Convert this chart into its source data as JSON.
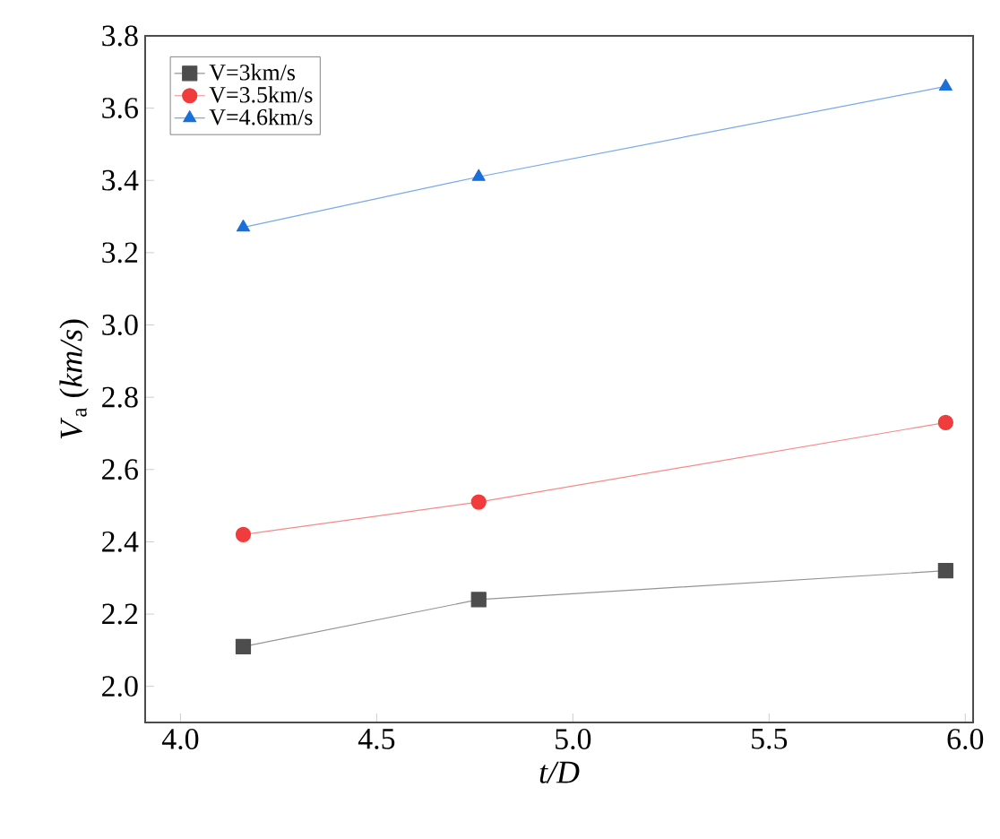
{
  "chart_data": {
    "type": "line",
    "xlabel": "*t/D*",
    "ylabel": "*V*$_{a}$ (*km/s*)",
    "x": [
      4.16,
      4.76,
      5.95
    ],
    "series": [
      {
        "name": "V=3km/s",
        "color": "#4d4d4d",
        "marker": "square",
        "values": [
          2.11,
          2.24,
          2.32
        ]
      },
      {
        "name": "V=3.5km/s",
        "color": "#f03c3c",
        "marker": "circle",
        "values": [
          2.42,
          2.51,
          2.73
        ]
      },
      {
        "name": "V=4.6km/s",
        "color": "#1a6fd9",
        "marker": "triangle",
        "values": [
          3.27,
          3.41,
          3.66
        ]
      }
    ],
    "xlim": [
      3.91,
      6.02
    ],
    "ylim": [
      1.9,
      3.8
    ],
    "xticks": [
      {
        "value": 4.0,
        "label": "4.0"
      },
      {
        "value": 4.5,
        "label": "4.5"
      },
      {
        "value": 5.0,
        "label": "5.0"
      },
      {
        "value": 5.5,
        "label": "5.5"
      },
      {
        "value": 6.0,
        "label": "6.0"
      }
    ],
    "yticks": [
      {
        "value": 2.0,
        "label": "2.0"
      },
      {
        "value": 2.2,
        "label": "2.2"
      },
      {
        "value": 2.4,
        "label": "2.4"
      },
      {
        "value": 2.6,
        "label": "2.6"
      },
      {
        "value": 2.8,
        "label": "2.8"
      },
      {
        "value": 3.0,
        "label": "3.0"
      },
      {
        "value": 3.2,
        "label": "3.2"
      },
      {
        "value": 3.4,
        "label": "3.4"
      },
      {
        "value": 3.6,
        "label": "3.6"
      },
      {
        "value": 3.8,
        "label": "3.8"
      }
    ],
    "legend": "top left",
    "grid": false,
    "line_style": "solid"
  }
}
